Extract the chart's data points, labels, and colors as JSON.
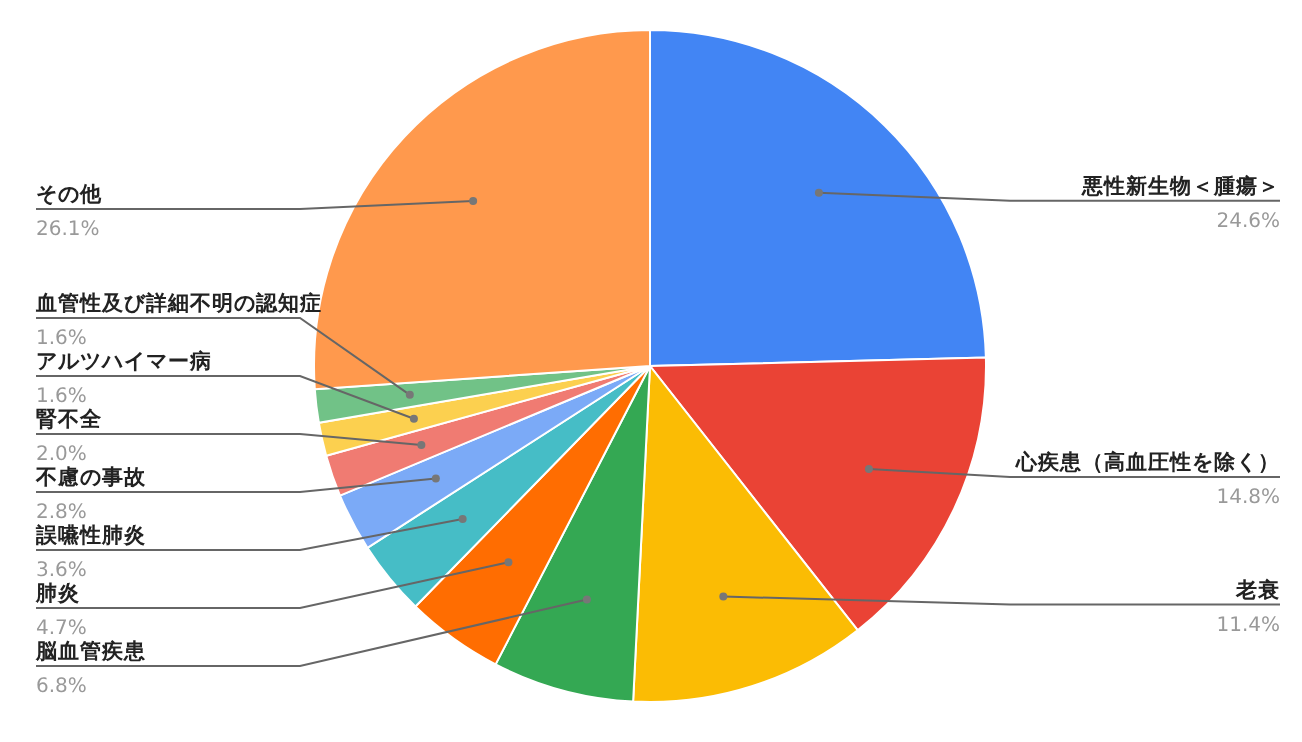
{
  "chart_data": {
    "type": "pie",
    "categories": [
      "悪性新生物＜腫瘍＞",
      "心疾患（高血圧性を除く）",
      "老衰",
      "脳血管疾患",
      "肺炎",
      "誤嚥性肺炎",
      "不慮の事故",
      "腎不全",
      "アルツハイマー病",
      "血管性及び詳細不明の認知症",
      "その他"
    ],
    "values": [
      24.6,
      14.8,
      11.4,
      6.8,
      4.7,
      3.6,
      2.8,
      2.0,
      1.6,
      1.6,
      26.1
    ],
    "value_labels": [
      "24.6%",
      "14.8%",
      "11.4%",
      "6.8%",
      "4.7%",
      "3.6%",
      "2.8%",
      "2.0%",
      "1.6%",
      "1.6%",
      "26.1%"
    ],
    "colors": [
      "#4285f4",
      "#ea4335",
      "#fbbc04",
      "#34a853",
      "#ff6d01",
      "#46bdc6",
      "#7baaf7",
      "#f07b72",
      "#fcd04f",
      "#71c287",
      "#ff994d"
    ]
  }
}
